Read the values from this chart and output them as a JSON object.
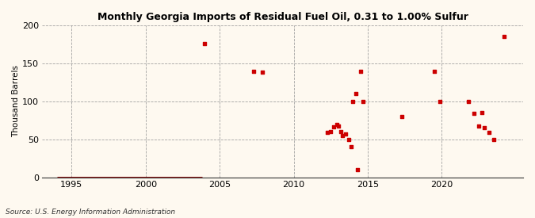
{
  "title": "Monthly Georgia Imports of Residual Fuel Oil, 0.31 to 1.00% Sulfur",
  "ylabel": "Thousand Barrels",
  "source": "Source: U.S. Energy Information Administration",
  "background_color": "#fef9f0",
  "plot_bg_color": "#fef9f0",
  "scatter_color": "#cc0000",
  "line_color": "#8b0000",
  "xlim": [
    1993.0,
    2025.5
  ],
  "ylim": [
    0,
    200
  ],
  "yticks": [
    0,
    50,
    100,
    150,
    200
  ],
  "xticks": [
    1995,
    2000,
    2005,
    2010,
    2015,
    2020
  ],
  "scatter_data": [
    [
      2004.0,
      176
    ],
    [
      2007.3,
      140
    ],
    [
      2007.9,
      138
    ],
    [
      2012.3,
      59
    ],
    [
      2012.5,
      60
    ],
    [
      2012.7,
      67
    ],
    [
      2012.9,
      70
    ],
    [
      2013.0,
      68
    ],
    [
      2013.2,
      60
    ],
    [
      2013.3,
      55
    ],
    [
      2013.5,
      57
    ],
    [
      2013.7,
      50
    ],
    [
      2013.9,
      40
    ],
    [
      2014.0,
      100
    ],
    [
      2014.2,
      110
    ],
    [
      2014.3,
      10
    ],
    [
      2014.5,
      140
    ],
    [
      2014.7,
      100
    ],
    [
      2017.3,
      80
    ],
    [
      2019.5,
      139
    ],
    [
      2019.9,
      100
    ],
    [
      2021.8,
      100
    ],
    [
      2022.2,
      84
    ],
    [
      2022.5,
      68
    ],
    [
      2022.7,
      85
    ],
    [
      2022.9,
      65
    ],
    [
      2023.2,
      59
    ],
    [
      2023.5,
      50
    ],
    [
      2024.2,
      185
    ]
  ],
  "zero_line_start": 1994.0,
  "zero_line_end": 2003.8
}
